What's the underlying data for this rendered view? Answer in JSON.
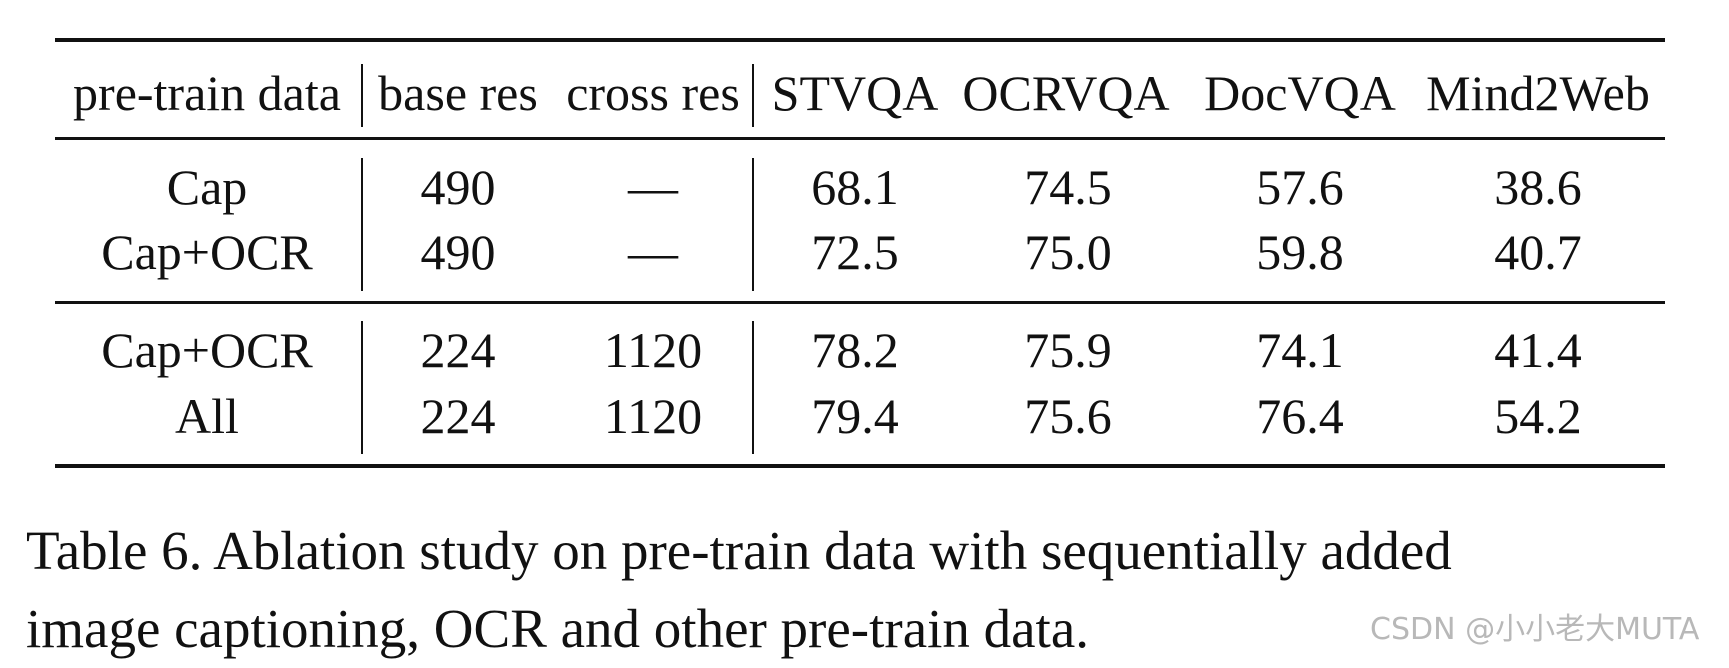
{
  "table": {
    "headers": [
      "pre-train data",
      "base res",
      "cross res",
      "STVQA",
      "OCRVQA",
      "DocVQA",
      "Mind2Web"
    ],
    "rows": [
      [
        "Cap",
        "490",
        "—",
        "68.1",
        "74.5",
        "57.6",
        "38.6"
      ],
      [
        "Cap+OCR",
        "490",
        "—",
        "72.5",
        "75.0",
        "59.8",
        "40.7"
      ],
      [
        "Cap+OCR",
        "224",
        "1120",
        "78.2",
        "75.9",
        "74.1",
        "41.4"
      ],
      [
        "All",
        "224",
        "1120",
        "79.4",
        "75.6",
        "76.4",
        "54.2"
      ]
    ]
  },
  "caption": {
    "line1": "Table 6. Ablation study on pre-train data with sequentially added",
    "line2": "image captioning, OCR and other pre-train data."
  },
  "watermark": "CSDN @小小老大MUTA"
}
